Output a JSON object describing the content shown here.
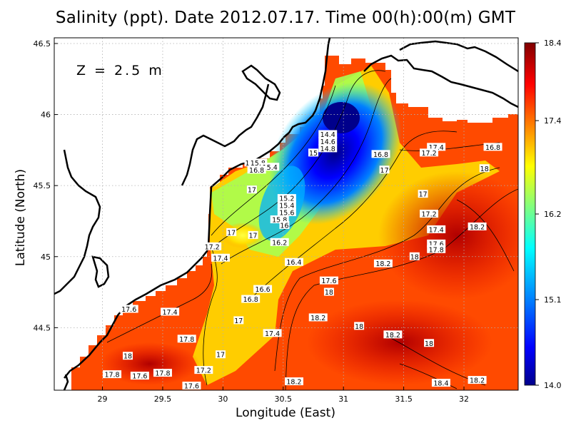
{
  "title": "Salinity (ppt). Date 2012.07.17. Time 00(h):00(m) GMT",
  "depth_label": "Z = 2.5 m",
  "chart_data": {
    "type": "heatmap",
    "title": "Salinity (ppt). Date 2012.07.17. Time 00(h):00(m) GMT",
    "xlabel": "Longitude (East)",
    "ylabel": "Latitude (North)",
    "xlim": [
      28.6,
      32.45
    ],
    "ylim": [
      44.06,
      46.54
    ],
    "xticks": [
      "29",
      "29.5",
      "30",
      "30.5",
      "31",
      "31.5",
      "32"
    ],
    "yticks": [
      "44.5",
      "45",
      "45.5",
      "46",
      "46.5"
    ],
    "grid": true,
    "colorbar": {
      "min": 14.0,
      "max": 18.4,
      "ticks": [
        "14.0",
        "15.1",
        "16.2",
        "17.4",
        "18.4"
      ],
      "colors": [
        "#00008b",
        "#0000ff",
        "#0080ff",
        "#00ffff",
        "#80ff80",
        "#ffff00",
        "#ff8000",
        "#ff0000",
        "#800000"
      ]
    },
    "contour_labels": [
      {
        "lon": 30.87,
        "lat": 45.86,
        "text": "14.4"
      },
      {
        "lon": 30.87,
        "lat": 45.81,
        "text": "14.6"
      },
      {
        "lon": 30.87,
        "lat": 45.76,
        "text": "14.8"
      },
      {
        "lon": 30.75,
        "lat": 45.73,
        "text": "15"
      },
      {
        "lon": 30.22,
        "lat": 45.66,
        "text": "16"
      },
      {
        "lon": 30.29,
        "lat": 45.66,
        "text": "15.8"
      },
      {
        "lon": 30.39,
        "lat": 45.63,
        "text": "15.4"
      },
      {
        "lon": 30.28,
        "lat": 45.61,
        "text": "16.8"
      },
      {
        "lon": 30.53,
        "lat": 45.41,
        "text": "15.2"
      },
      {
        "lon": 30.53,
        "lat": 45.36,
        "text": "15.4"
      },
      {
        "lon": 30.53,
        "lat": 45.31,
        "text": "15.6"
      },
      {
        "lon": 30.47,
        "lat": 45.26,
        "text": "15.8"
      },
      {
        "lon": 30.51,
        "lat": 45.22,
        "text": "16"
      },
      {
        "lon": 30.24,
        "lat": 45.47,
        "text": "17"
      },
      {
        "lon": 30.07,
        "lat": 45.17,
        "text": "17"
      },
      {
        "lon": 30.25,
        "lat": 45.15,
        "text": "17"
      },
      {
        "lon": 30.47,
        "lat": 45.1,
        "text": "16.2"
      },
      {
        "lon": 29.91,
        "lat": 45.07,
        "text": "17.2"
      },
      {
        "lon": 29.98,
        "lat": 44.99,
        "text": "17.4"
      },
      {
        "lon": 30.59,
        "lat": 44.96,
        "text": "16.4"
      },
      {
        "lon": 30.88,
        "lat": 44.83,
        "text": "17.6"
      },
      {
        "lon": 30.88,
        "lat": 44.75,
        "text": "18"
      },
      {
        "lon": 30.33,
        "lat": 44.77,
        "text": "16.6"
      },
      {
        "lon": 30.23,
        "lat": 44.7,
        "text": "16.8"
      },
      {
        "lon": 30.13,
        "lat": 44.55,
        "text": "17"
      },
      {
        "lon": 30.41,
        "lat": 44.46,
        "text": "17.4"
      },
      {
        "lon": 30.79,
        "lat": 44.57,
        "text": "18.2"
      },
      {
        "lon": 31.13,
        "lat": 44.51,
        "text": "18"
      },
      {
        "lon": 31.41,
        "lat": 44.45,
        "text": "18.2"
      },
      {
        "lon": 31.71,
        "lat": 44.39,
        "text": "18"
      },
      {
        "lon": 29.22,
        "lat": 44.63,
        "text": "17.6"
      },
      {
        "lon": 29.56,
        "lat": 44.61,
        "text": "17.4"
      },
      {
        "lon": 29.7,
        "lat": 44.42,
        "text": "17.8"
      },
      {
        "lon": 29.21,
        "lat": 44.3,
        "text": "18"
      },
      {
        "lon": 29.98,
        "lat": 44.31,
        "text": "17"
      },
      {
        "lon": 29.84,
        "lat": 44.2,
        "text": "17.2"
      },
      {
        "lon": 29.08,
        "lat": 44.17,
        "text": "17.8"
      },
      {
        "lon": 29.31,
        "lat": 44.16,
        "text": "17.6"
      },
      {
        "lon": 29.5,
        "lat": 44.18,
        "text": "17.8"
      },
      {
        "lon": 29.74,
        "lat": 44.09,
        "text": "17.6"
      },
      {
        "lon": 30.59,
        "lat": 44.12,
        "text": "18.2"
      },
      {
        "lon": 31.31,
        "lat": 45.72,
        "text": "16.8"
      },
      {
        "lon": 31.34,
        "lat": 45.61,
        "text": "17"
      },
      {
        "lon": 31.77,
        "lat": 45.77,
        "text": "17.4"
      },
      {
        "lon": 31.71,
        "lat": 45.73,
        "text": "17.2"
      },
      {
        "lon": 32.24,
        "lat": 45.77,
        "text": "16.8"
      },
      {
        "lon": 32.17,
        "lat": 45.62,
        "text": "18"
      },
      {
        "lon": 31.66,
        "lat": 45.44,
        "text": "17"
      },
      {
        "lon": 31.71,
        "lat": 45.3,
        "text": "17.2"
      },
      {
        "lon": 31.77,
        "lat": 45.19,
        "text": "17.4"
      },
      {
        "lon": 32.11,
        "lat": 45.21,
        "text": "18.2"
      },
      {
        "lon": 31.77,
        "lat": 45.09,
        "text": "17.6"
      },
      {
        "lon": 31.77,
        "lat": 45.05,
        "text": "17.8"
      },
      {
        "lon": 31.59,
        "lat": 45.0,
        "text": "18"
      },
      {
        "lon": 31.33,
        "lat": 44.95,
        "text": "18.2"
      },
      {
        "lon": 31.81,
        "lat": 44.11,
        "text": "18.4"
      },
      {
        "lon": 32.11,
        "lat": 44.13,
        "text": "18.2"
      }
    ]
  }
}
